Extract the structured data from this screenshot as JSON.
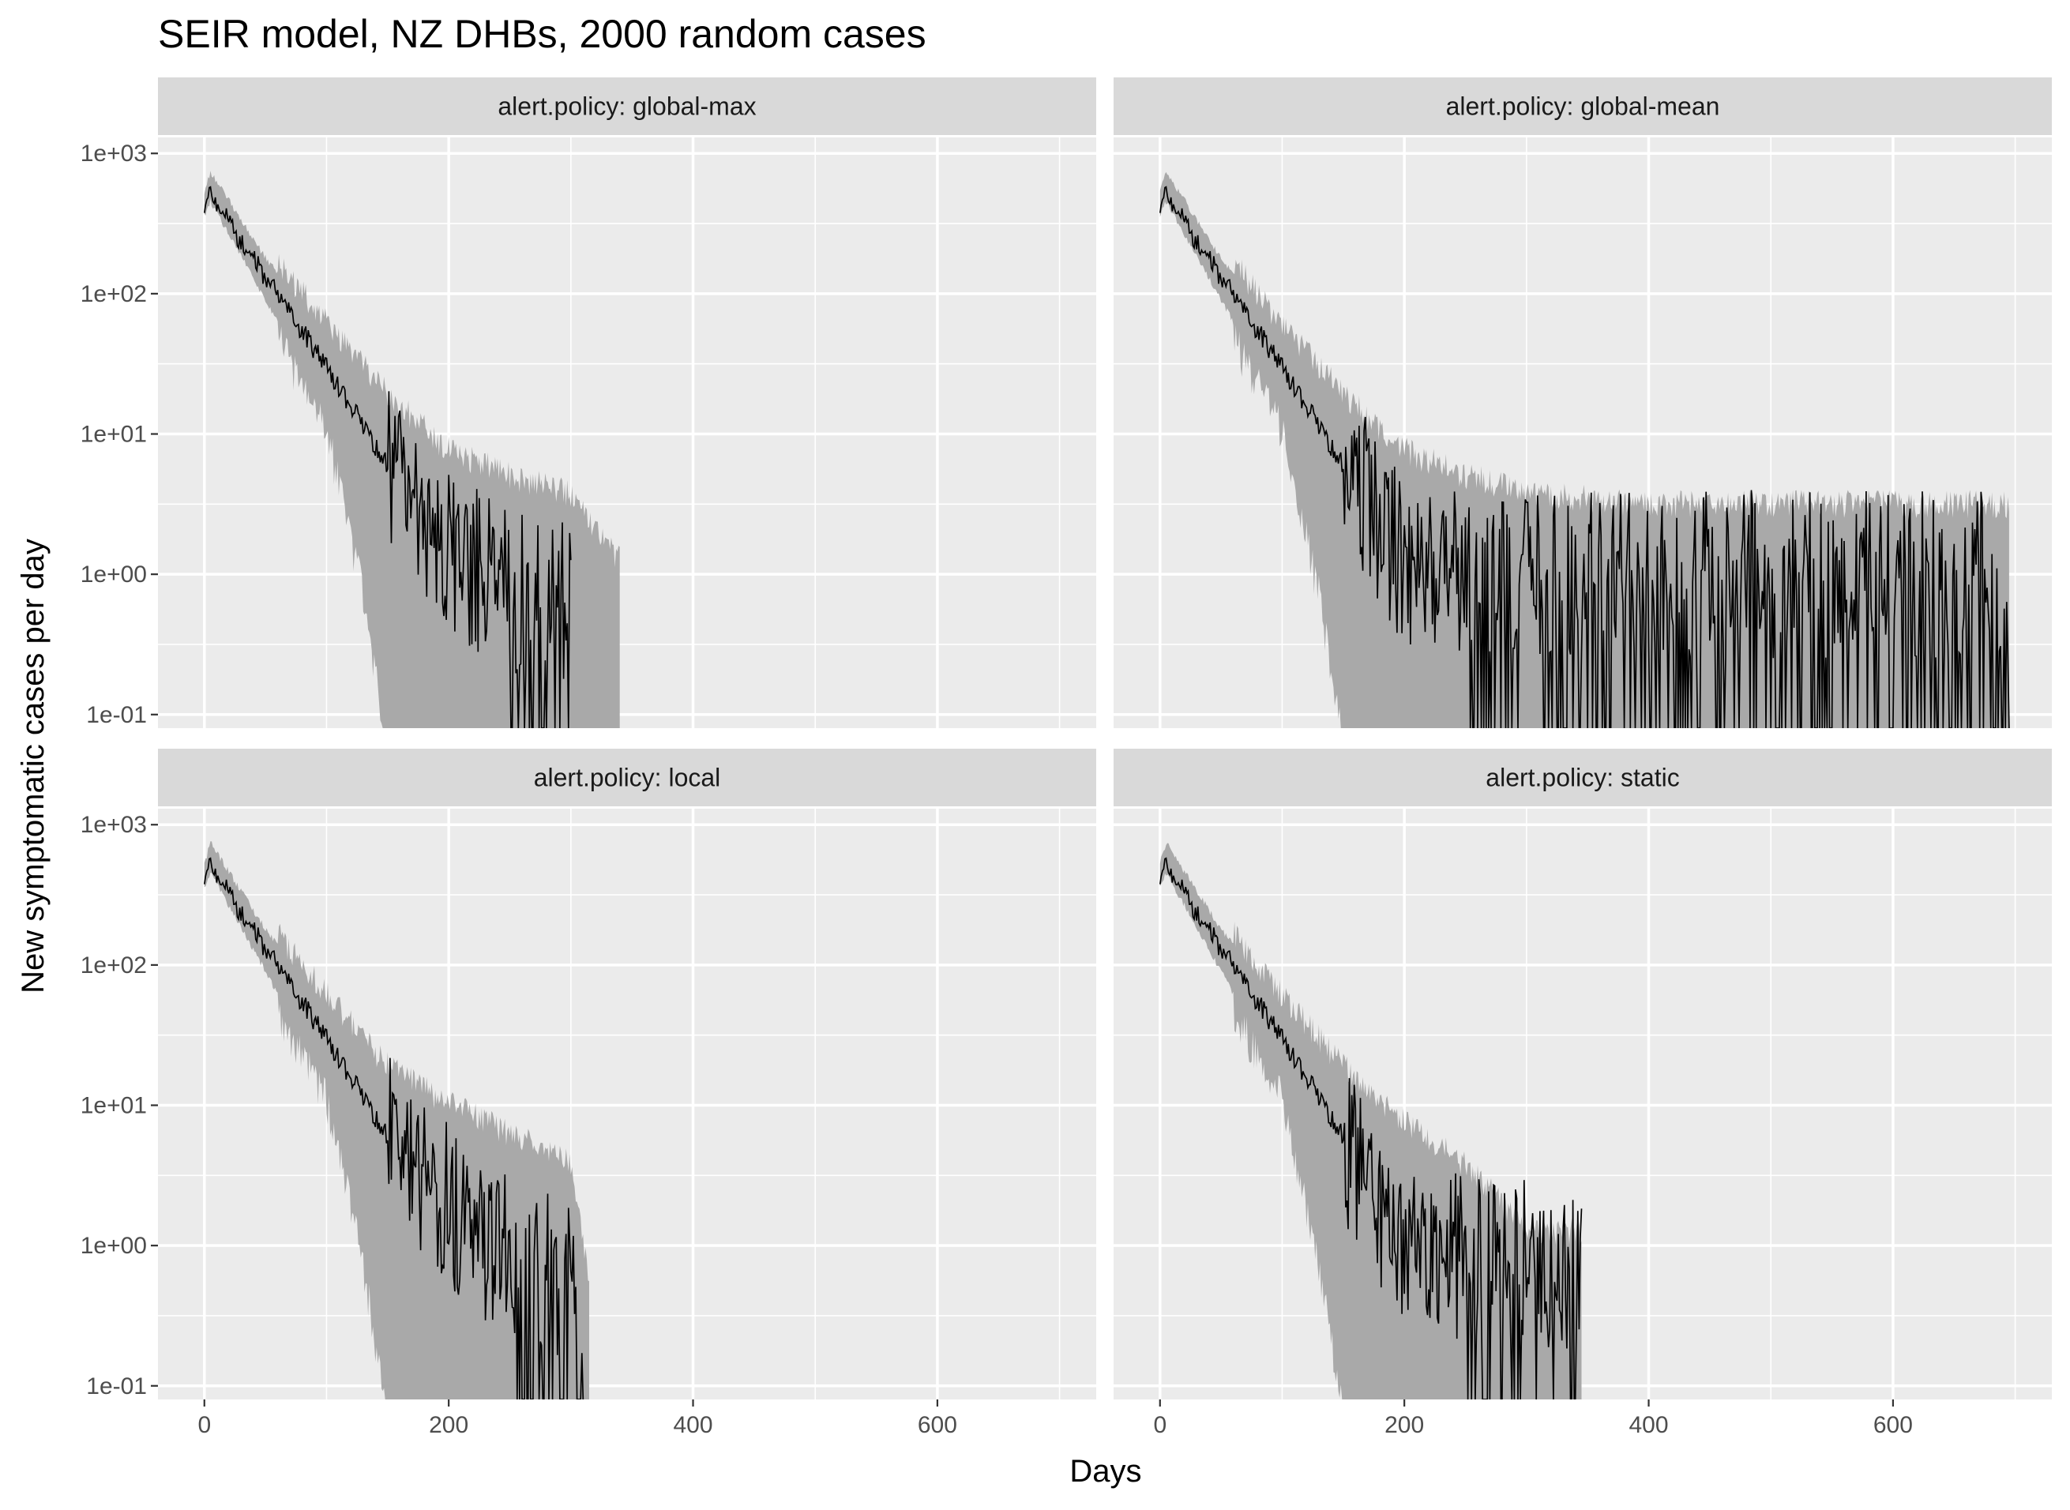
{
  "chart_data": {
    "type": "line",
    "title": "SEIR model, NZ DHBs, 2000 random cases",
    "xlabel": "Days",
    "ylabel": "New symptomatic cases per day",
    "y_scale": "log10",
    "xlim": [
      -38,
      730
    ],
    "ylim": [
      0.08,
      1300
    ],
    "x_ticks": [
      0,
      200,
      400,
      600
    ],
    "x_tick_labels": [
      "0",
      "200",
      "400",
      "600"
    ],
    "y_ticks": [
      0.1,
      1,
      10,
      100,
      1000
    ],
    "y_tick_labels": [
      "1e-01",
      "1e+00",
      "1e+01",
      "1e+02",
      "1e+03"
    ],
    "grid": true,
    "band_description": "grey ribbon = range across simulations; black line = central estimate",
    "panels": [
      {
        "strip": "alert.policy: global-max",
        "center": {
          "x": [
            0,
            5,
            20,
            50,
            100,
            150,
            200,
            250,
            300
          ],
          "y": [
            420,
            550,
            320,
            130,
            30,
            6,
            1.5,
            0.8,
            0.6
          ]
        },
        "band_upper": {
          "x": [
            0,
            5,
            50,
            100,
            150,
            200,
            250,
            300,
            340
          ],
          "y": [
            500,
            700,
            170,
            48,
            15,
            6,
            4,
            3,
            1
          ]
        },
        "band_lower": {
          "x": [
            0,
            5,
            50,
            100,
            130,
            150,
            250,
            340
          ],
          "y": [
            380,
            480,
            95,
            15,
            1,
            0.08,
            0.08,
            0.08
          ]
        }
      },
      {
        "strip": "alert.policy: global-mean",
        "center": {
          "x": [
            0,
            5,
            20,
            50,
            100,
            150,
            200,
            250,
            300,
            400,
            500,
            600,
            695
          ],
          "y": [
            420,
            550,
            320,
            130,
            30,
            6,
            1.2,
            1,
            1,
            1,
            1,
            1,
            1
          ]
        },
        "band_upper": {
          "x": [
            0,
            5,
            50,
            100,
            150,
            200,
            250,
            300,
            400,
            500,
            600,
            695
          ],
          "y": [
            500,
            700,
            170,
            48,
            15,
            6,
            4,
            3,
            2.5,
            2.5,
            2.5,
            2.5
          ]
        },
        "band_lower": {
          "x": [
            0,
            5,
            50,
            100,
            130,
            150,
            695
          ],
          "y": [
            380,
            480,
            95,
            15,
            1,
            0.08,
            0.08
          ]
        }
      },
      {
        "strip": "alert.policy: local",
        "center": {
          "x": [
            0,
            5,
            20,
            50,
            100,
            150,
            200,
            250,
            300,
            310
          ],
          "y": [
            420,
            550,
            320,
            130,
            30,
            6,
            2,
            0.8,
            0.5,
            0.08
          ]
        },
        "band_upper": {
          "x": [
            0,
            5,
            50,
            100,
            150,
            200,
            250,
            300,
            315
          ],
          "y": [
            500,
            700,
            170,
            48,
            15,
            8,
            5,
            3,
            0.5
          ]
        },
        "band_lower": {
          "x": [
            0,
            5,
            50,
            100,
            130,
            150,
            315
          ],
          "y": [
            380,
            480,
            95,
            15,
            1,
            0.08,
            0.08
          ]
        }
      },
      {
        "strip": "alert.policy: static",
        "center": {
          "x": [
            0,
            5,
            20,
            50,
            100,
            150,
            200,
            250,
            300,
            345
          ],
          "y": [
            420,
            550,
            320,
            130,
            30,
            6,
            1,
            0.8,
            0.8,
            0.6
          ]
        },
        "band_upper": {
          "x": [
            0,
            5,
            50,
            100,
            150,
            200,
            250,
            300,
            345
          ],
          "y": [
            500,
            700,
            170,
            48,
            15,
            6,
            3,
            1,
            1
          ]
        },
        "band_lower": {
          "x": [
            0,
            5,
            50,
            100,
            130,
            150,
            345
          ],
          "y": [
            380,
            480,
            95,
            15,
            1,
            0.08,
            0.08
          ]
        }
      }
    ]
  }
}
